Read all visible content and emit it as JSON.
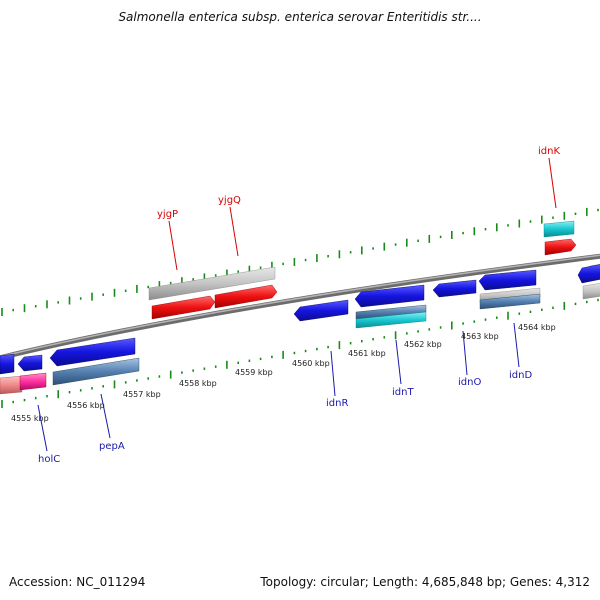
{
  "title": "Salmonella enterica subsp. enterica serovar Enteritidis str....",
  "footer": {
    "accession": "Accession: NC_011294",
    "summary": "Topology: circular; Length: 4,685,848 bp; Genes: 4,312"
  },
  "colors": {
    "forward_strand_ticks": "#1a8a1a",
    "backbone": "#8a8a8a",
    "gene_blue": "#1515e0",
    "gene_red": "#ee1111",
    "gene_grey": "#bdbdbd",
    "gene_cyan": "#18c8d0",
    "gene_steel": "#5580b0",
    "gene_pink": "#ff2fa0",
    "gene_salmon": "#f08a8a",
    "label_red": "#dd0000",
    "label_blue": "#1a1aaa"
  },
  "scale_labels": [
    "4555 kbp",
    "4556 kbp",
    "4557 kbp",
    "4558 kbp",
    "4559 kbp",
    "4560 kbp",
    "4561 kbp",
    "4562 kbp",
    "4563 kbp",
    "4564 kbp"
  ],
  "gene_labels": [
    {
      "name": "yjgP",
      "color": "red"
    },
    {
      "name": "yjgQ",
      "color": "red"
    },
    {
      "name": "idnK",
      "color": "red"
    },
    {
      "name": "holC",
      "color": "blue"
    },
    {
      "name": "pepA",
      "color": "blue"
    },
    {
      "name": "idnR",
      "color": "blue"
    },
    {
      "name": "idnT",
      "color": "blue"
    },
    {
      "name": "idnO",
      "color": "blue"
    },
    {
      "name": "idnD",
      "color": "blue"
    }
  ]
}
